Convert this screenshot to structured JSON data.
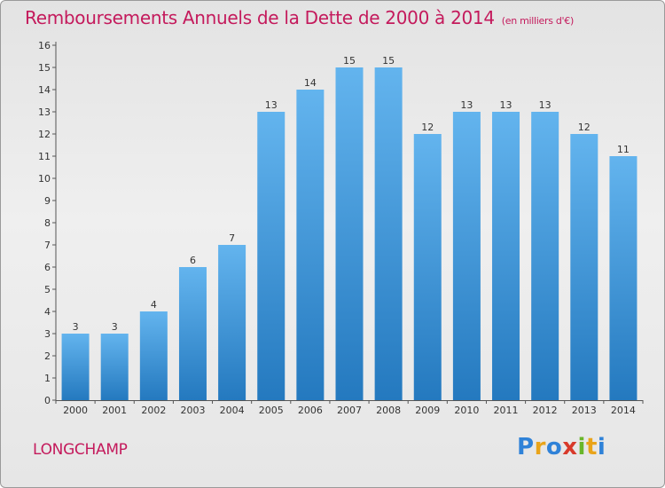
{
  "title": "Remboursements Annuels de la Dette de 2000 à 2014",
  "subtitle": "(en milliers d'€)",
  "commune": "LONGCHAMP",
  "logo": {
    "parts": [
      "P",
      "r",
      "o",
      "x",
      "i",
      "t",
      "i"
    ]
  },
  "colors": {
    "title": "#c41a5c",
    "bar_top": "#63b4ee",
    "bar_bottom": "#2479bf"
  },
  "chart_data": {
    "type": "bar",
    "categories": [
      "2000",
      "2001",
      "2002",
      "2003",
      "2004",
      "2005",
      "2006",
      "2007",
      "2008",
      "2009",
      "2010",
      "2011",
      "2012",
      "2013",
      "2014"
    ],
    "values": [
      3,
      3,
      4,
      6,
      7,
      13,
      14,
      15,
      15,
      12,
      13,
      13,
      13,
      12,
      11
    ],
    "data_labels": [
      "3",
      "3",
      "4",
      "6",
      "7",
      "13",
      "14",
      "15",
      "15",
      "12",
      "13",
      "13",
      "13",
      "12",
      "11"
    ],
    "title": "Remboursements Annuels de la Dette de 2000 à 2014",
    "xlabel": "",
    "ylabel": "",
    "ylim": [
      0,
      16
    ],
    "yticks": [
      "0",
      "1",
      "2",
      "3",
      "4",
      "5",
      "6",
      "7",
      "8",
      "9",
      "10",
      "11",
      "12",
      "13",
      "14",
      "15",
      "16"
    ],
    "grid": false,
    "legend": "none"
  }
}
